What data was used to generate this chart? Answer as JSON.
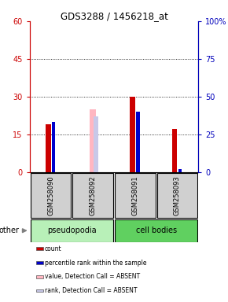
{
  "title": "GDS3288 / 1456218_at",
  "samples": [
    "GSM258090",
    "GSM258092",
    "GSM258091",
    "GSM258093"
  ],
  "groups": [
    "pseudopodia",
    "pseudopodia",
    "cell bodies",
    "cell bodies"
  ],
  "red_values": [
    19,
    0,
    30,
    17
  ],
  "blue_values": [
    33,
    0,
    40,
    2
  ],
  "pink_values": [
    0,
    25,
    0,
    0
  ],
  "lavender_values": [
    0,
    37,
    0,
    0
  ],
  "ylim_left": [
    0,
    60
  ],
  "ylim_right": [
    0,
    100
  ],
  "yticks_left": [
    0,
    15,
    30,
    45,
    60
  ],
  "yticks_right": [
    0,
    25,
    50,
    75,
    100
  ],
  "left_color": "#cc0000",
  "right_color": "#0000bb",
  "legend_items": [
    {
      "label": "count",
      "color": "#cc0000"
    },
    {
      "label": "percentile rank within the sample",
      "color": "#0000cc"
    },
    {
      "label": "value, Detection Call = ABSENT",
      "color": "#ffb6c1"
    },
    {
      "label": "rank, Detection Call = ABSENT",
      "color": "#c8c8e8"
    }
  ],
  "other_label": "other",
  "pseudopodia_color": "#b8f0b8",
  "cell_bodies_color": "#60d060",
  "sample_box_color": "#d0d0d0",
  "plot_bg_color": "#ffffff"
}
